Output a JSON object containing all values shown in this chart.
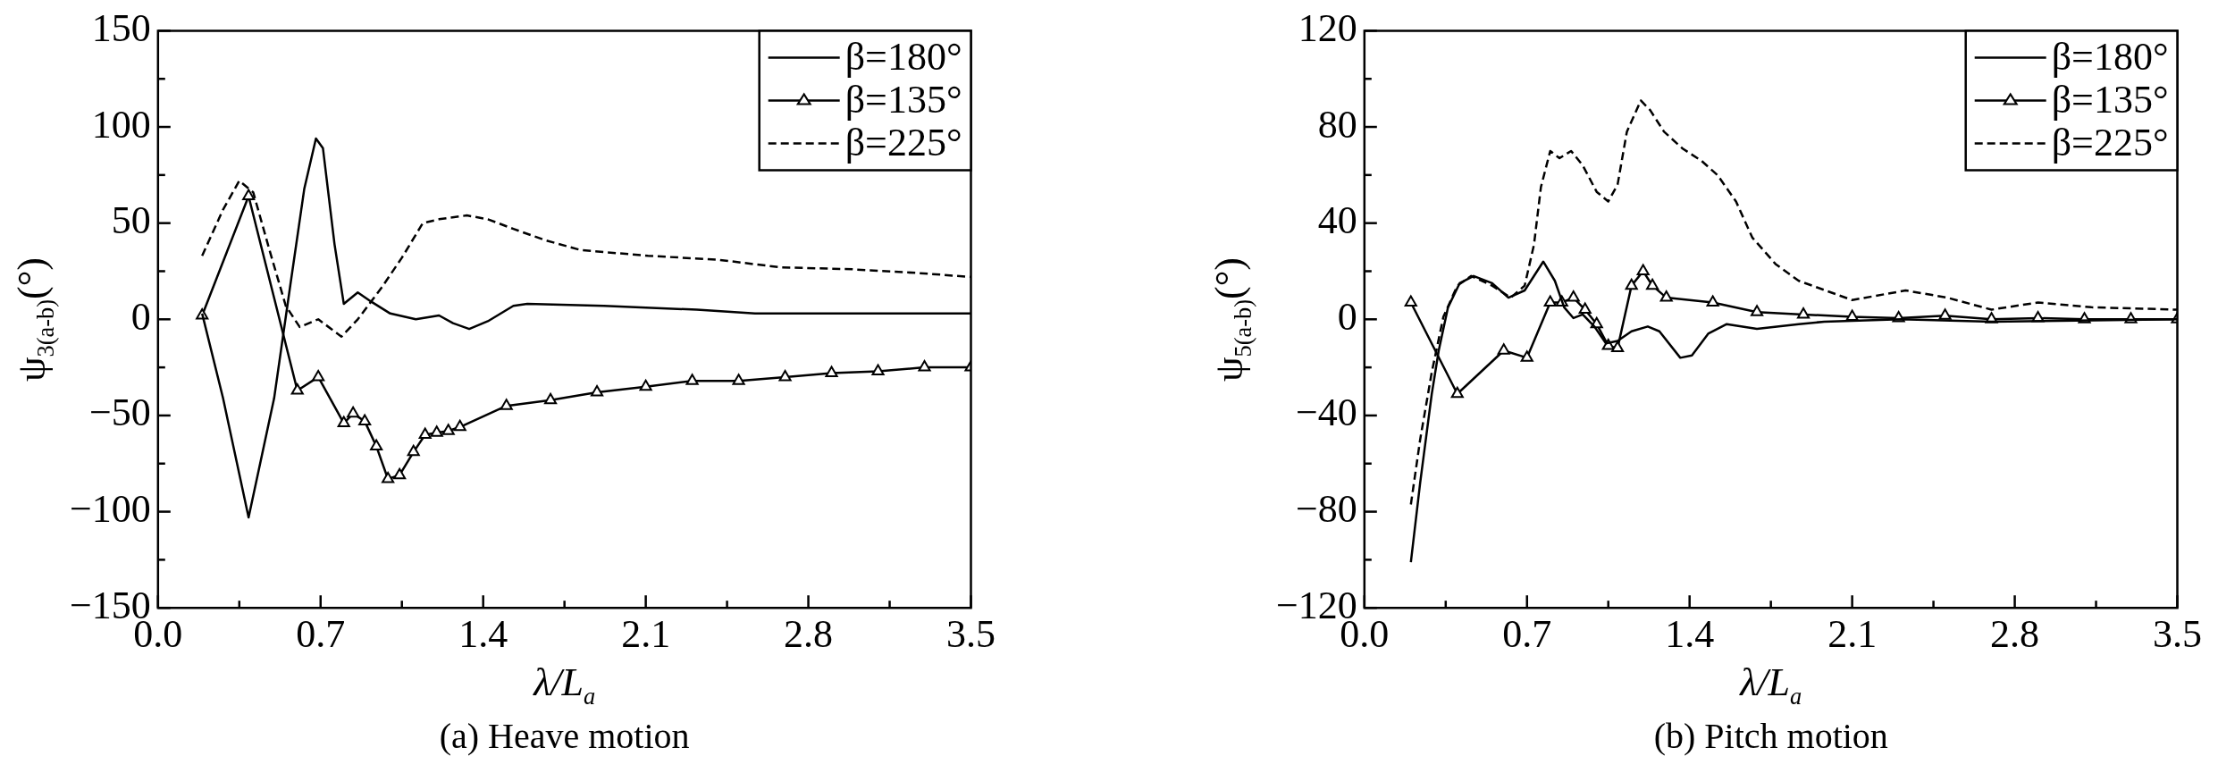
{
  "chart_data": [
    {
      "type": "line",
      "title": "(a) Heave motion",
      "xlabel": "λ/L$_{a}$",
      "ylabel": "ψ$_{3(a-b)}$(°)",
      "legend": "top right",
      "grid": false,
      "xlim": [
        0,
        3.5
      ],
      "xticks": [
        {
          "value": 0,
          "label": "0.0"
        },
        {
          "value": 0.35,
          "label": null
        },
        0.7,
        {
          "value": 1.05,
          "label": null
        },
        1.4,
        {
          "value": 1.75,
          "label": null
        },
        2.1,
        {
          "value": 2.45,
          "label": null
        },
        2.8,
        {
          "value": 3.15,
          "label": null
        },
        3.5
      ],
      "ylim": [
        -150,
        150
      ],
      "yticks": [
        -150,
        {
          "value": -125,
          "label": null
        },
        -100,
        {
          "value": -75,
          "label": null
        },
        -50,
        {
          "value": -25,
          "label": null
        },
        0,
        {
          "value": 25,
          "label": null
        },
        50,
        {
          "value": 75,
          "label": null
        },
        100,
        {
          "value": 125,
          "label": null
        },
        150
      ],
      "series": [
        {
          "name": "β=180°",
          "color": "#000000",
          "marker": "none",
          "line_style": "solid",
          "x": [
            0.19,
            0.28,
            0.39,
            0.5,
            0.57,
            0.63,
            0.68,
            0.71,
            0.76,
            0.8,
            0.86,
            0.92,
            1.0,
            1.11,
            1.21,
            1.27,
            1.34,
            1.42,
            1.53,
            1.59,
            1.92,
            2.32,
            2.57,
            3.11,
            3.5
          ],
          "values": [
            3,
            -41,
            -103,
            -41,
            18,
            68,
            94,
            89,
            39,
            8,
            14,
            9,
            3,
            0,
            2,
            -2,
            -5,
            -1,
            7,
            8,
            7,
            5,
            3,
            3,
            3
          ]
        },
        {
          "name": "β=135°",
          "color": "#000000",
          "marker": "triangle",
          "line_style": "solid",
          "x": [
            0.19,
            0.39,
            0.6,
            0.69,
            0.8,
            0.84,
            0.89,
            0.94,
            0.99,
            1.04,
            1.1,
            1.15,
            1.2,
            1.25,
            1.3,
            1.5,
            1.69,
            1.89,
            2.1,
            2.3,
            2.5,
            2.7,
            2.9,
            3.1,
            3.3,
            3.5
          ],
          "values": [
            2,
            64,
            -37,
            -30,
            -54,
            -49,
            -53,
            -66,
            -83,
            -81,
            -69,
            -60,
            -59,
            -58,
            -56,
            -45,
            -42,
            -38,
            -35,
            -32,
            -32,
            -30,
            -28,
            -27,
            -25,
            -25
          ]
        },
        {
          "name": "β=225°",
          "color": "#000000",
          "marker": "none",
          "line_style": "dashed",
          "x": [
            0.19,
            0.28,
            0.35,
            0.41,
            0.48,
            0.55,
            0.61,
            0.69,
            0.79,
            0.86,
            0.96,
            1.05,
            1.14,
            1.21,
            1.33,
            1.42,
            1.53,
            1.67,
            1.82,
            2.11,
            2.41,
            2.68,
            2.99,
            3.28,
            3.5
          ],
          "values": [
            33,
            57,
            72,
            66,
            36,
            7,
            -4,
            0,
            -9,
            0,
            16,
            32,
            50,
            52,
            54,
            52,
            47,
            41,
            36,
            33,
            31,
            27,
            26,
            24,
            22
          ]
        }
      ]
    },
    {
      "type": "line",
      "title": "(b) Pitch motion",
      "xlabel": "λ/L$_{a}$",
      "ylabel": "ψ$_{5(a-b)}$(°)",
      "legend": "top right",
      "grid": false,
      "xlim": [
        0,
        3.5
      ],
      "xticks": [
        {
          "value": 0,
          "label": "0.0"
        },
        {
          "value": 0.35,
          "label": null
        },
        0.7,
        {
          "value": 1.05,
          "label": null
        },
        1.4,
        {
          "value": 1.75,
          "label": null
        },
        2.1,
        {
          "value": 2.45,
          "label": null
        },
        2.8,
        {
          "value": 3.15,
          "label": null
        },
        3.5
      ],
      "ylim": [
        -120,
        120
      ],
      "yticks": [
        -120,
        {
          "value": -100,
          "label": null
        },
        -80,
        {
          "value": -60,
          "label": null
        },
        -40,
        {
          "value": -20,
          "label": null
        },
        0,
        {
          "value": 20,
          "label": null
        },
        40,
        {
          "value": 60,
          "label": null
        },
        80,
        {
          "value": 100,
          "label": null
        },
        120
      ],
      "series": [
        {
          "name": "β=180°",
          "color": "#000000",
          "marker": "none",
          "line_style": "solid",
          "x": [
            0.2,
            0.24,
            0.29,
            0.32,
            0.36,
            0.41,
            0.47,
            0.55,
            0.62,
            0.69,
            0.77,
            0.82,
            0.86,
            0.9,
            0.94,
            0.99,
            1.04,
            1.09,
            1.15,
            1.22,
            1.27,
            1.36,
            1.41,
            1.48,
            1.56,
            1.69,
            1.87,
            1.98,
            2.31,
            2.7,
            3.5
          ],
          "values": [
            -101,
            -68,
            -31,
            -13,
            5,
            15,
            18,
            15,
            9,
            12,
            24,
            16,
            5,
            0.5,
            2,
            -3,
            -10,
            -9,
            -5,
            -3,
            -5,
            -16,
            -15,
            -6,
            -2,
            -4,
            -2,
            -1,
            0,
            -1,
            0
          ]
        },
        {
          "name": "β=135°",
          "color": "#000000",
          "marker": "triangle",
          "line_style": "solid",
          "x": [
            0.2,
            0.4,
            0.6,
            0.7,
            0.8,
            0.85,
            0.9,
            0.95,
            1.0,
            1.05,
            1.09,
            1.15,
            1.2,
            1.24,
            1.3,
            1.5,
            1.69,
            1.89,
            2.1,
            2.3,
            2.5,
            2.7,
            2.9,
            3.1,
            3.3,
            3.5
          ],
          "values": [
            7,
            -31,
            -13,
            -16,
            7,
            7,
            9,
            4,
            -2,
            -11,
            -12,
            14,
            20,
            14,
            9,
            7,
            3,
            2,
            1,
            0.5,
            1.5,
            0,
            0.5,
            0,
            0,
            0
          ]
        },
        {
          "name": "β=225°",
          "color": "#000000",
          "marker": "none",
          "line_style": "dashed",
          "x": [
            0.2,
            0.24,
            0.29,
            0.34,
            0.4,
            0.46,
            0.55,
            0.63,
            0.69,
            0.73,
            0.76,
            0.8,
            0.84,
            0.89,
            0.94,
            1.0,
            1.05,
            1.09,
            1.13,
            1.19,
            1.23,
            1.29,
            1.37,
            1.45,
            1.52,
            1.6,
            1.67,
            1.77,
            1.87,
            2.1,
            2.33,
            2.51,
            2.7,
            2.9,
            3.13,
            3.5
          ],
          "values": [
            -77,
            -50,
            -22,
            1,
            14,
            18,
            14,
            9,
            14,
            31,
            55,
            70,
            67,
            70,
            64,
            53,
            49,
            56,
            78,
            91,
            87,
            78,
            71,
            66,
            60,
            49,
            34,
            23,
            16,
            8,
            12,
            9,
            4,
            7,
            5,
            4
          ]
        }
      ]
    }
  ]
}
